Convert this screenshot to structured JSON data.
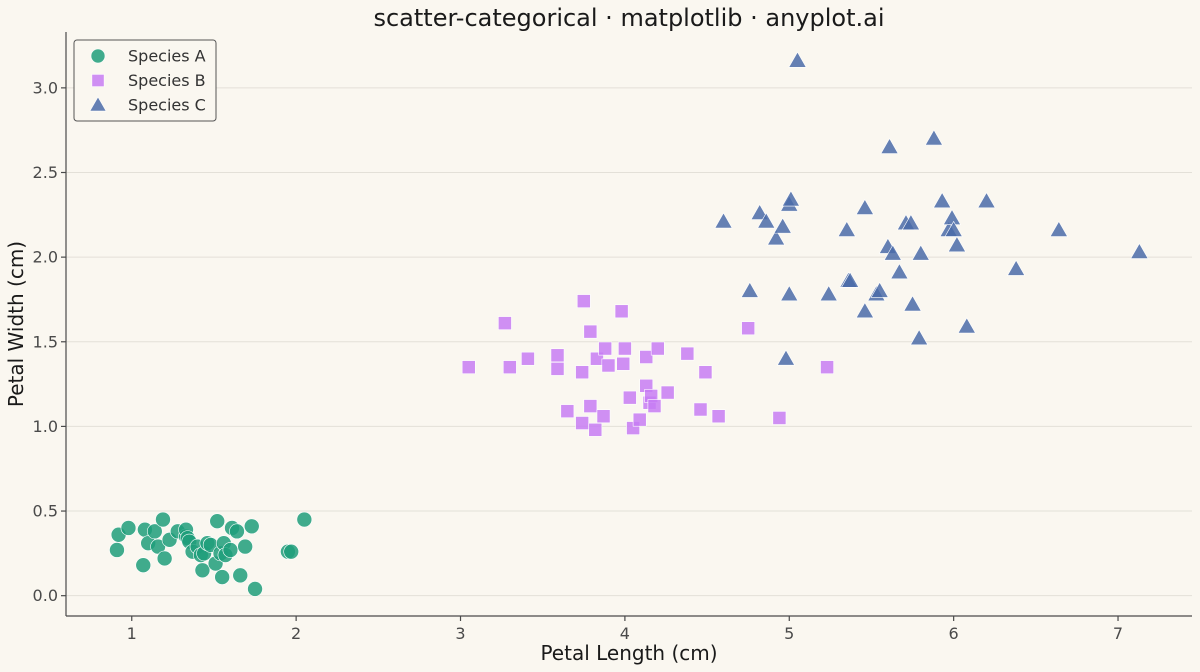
{
  "chart_data": {
    "type": "scatter",
    "title": "scatter-categorical · matplotlib · anyplot.ai",
    "xlabel": "Petal Length (cm)",
    "ylabel": "Petal Width (cm)",
    "xlim": [
      0.6,
      7.45
    ],
    "ylim": [
      -0.12,
      3.33
    ],
    "xticks": [
      1,
      2,
      3,
      4,
      5,
      6,
      7
    ],
    "yticks": [
      0.0,
      0.5,
      1.0,
      1.5,
      2.0,
      2.5,
      3.0
    ],
    "xtick_labels": [
      "1",
      "2",
      "3",
      "4",
      "5",
      "6",
      "7"
    ],
    "ytick_labels": [
      "0.0",
      "0.5",
      "1.0",
      "1.5",
      "2.0",
      "2.5",
      "3.0"
    ],
    "grid": "horizontal",
    "legend_position": "top-left",
    "series": [
      {
        "name": "Species A",
        "marker": "circle",
        "color": "#1E9E7A",
        "x": [
          0.91,
          0.92,
          0.98,
          1.07,
          1.08,
          1.1,
          1.14,
          1.16,
          1.19,
          1.2,
          1.23,
          1.28,
          1.33,
          1.33,
          1.34,
          1.35,
          1.37,
          1.4,
          1.42,
          1.43,
          1.44,
          1.46,
          1.48,
          1.51,
          1.52,
          1.54,
          1.55,
          1.56,
          1.57,
          1.6,
          1.61,
          1.64,
          1.66,
          1.69,
          1.73,
          1.75,
          1.95,
          1.97,
          2.05
        ],
        "y": [
          0.27,
          0.36,
          0.4,
          0.18,
          0.39,
          0.31,
          0.38,
          0.29,
          0.45,
          0.22,
          0.33,
          0.38,
          0.35,
          0.39,
          0.34,
          0.32,
          0.26,
          0.29,
          0.24,
          0.15,
          0.25,
          0.31,
          0.3,
          0.19,
          0.44,
          0.25,
          0.11,
          0.31,
          0.24,
          0.27,
          0.4,
          0.38,
          0.12,
          0.29,
          0.41,
          0.04,
          0.26,
          0.26,
          0.45
        ]
      },
      {
        "name": "Species B",
        "marker": "square",
        "color": "#C77DF3",
        "x": [
          3.05,
          3.27,
          3.3,
          3.41,
          3.59,
          3.59,
          3.65,
          3.74,
          3.74,
          3.75,
          3.79,
          3.79,
          3.82,
          3.83,
          3.87,
          3.88,
          3.9,
          3.98,
          3.99,
          4.0,
          4.03,
          4.05,
          4.09,
          4.13,
          4.13,
          4.15,
          4.16,
          4.18,
          4.2,
          4.26,
          4.38,
          4.46,
          4.49,
          4.57,
          4.75,
          4.94,
          5.23
        ],
        "y": [
          1.35,
          1.61,
          1.35,
          1.4,
          1.42,
          1.34,
          1.09,
          1.32,
          1.02,
          1.74,
          1.56,
          1.12,
          0.98,
          1.4,
          1.06,
          1.46,
          1.36,
          1.68,
          1.37,
          1.46,
          1.17,
          0.99,
          1.04,
          1.41,
          1.24,
          1.14,
          1.18,
          1.12,
          1.46,
          1.2,
          1.43,
          1.1,
          1.32,
          1.06,
          1.58,
          1.05,
          1.35
        ]
      },
      {
        "name": "Species C",
        "marker": "triangle",
        "color": "#4A6BA8",
        "x": [
          4.6,
          4.76,
          4.82,
          4.86,
          4.92,
          4.96,
          4.98,
          5.0,
          5.0,
          5.01,
          5.05,
          5.24,
          5.35,
          5.36,
          5.37,
          5.46,
          5.46,
          5.53,
          5.55,
          5.6,
          5.61,
          5.63,
          5.67,
          5.71,
          5.74,
          5.75,
          5.79,
          5.8,
          5.88,
          5.93,
          5.97,
          5.99,
          6.0,
          6.02,
          6.08,
          6.2,
          6.38,
          6.64,
          7.13
        ],
        "y": [
          2.21,
          1.8,
          2.26,
          2.21,
          2.11,
          2.18,
          1.4,
          1.78,
          2.31,
          2.34,
          3.16,
          1.78,
          2.16,
          1.86,
          1.86,
          1.68,
          2.29,
          1.78,
          1.8,
          2.06,
          2.65,
          2.02,
          1.91,
          2.2,
          2.2,
          1.72,
          1.52,
          2.02,
          2.7,
          2.33,
          2.16,
          2.23,
          2.16,
          2.07,
          1.59,
          2.33,
          1.93,
          2.16,
          2.03
        ]
      }
    ]
  }
}
